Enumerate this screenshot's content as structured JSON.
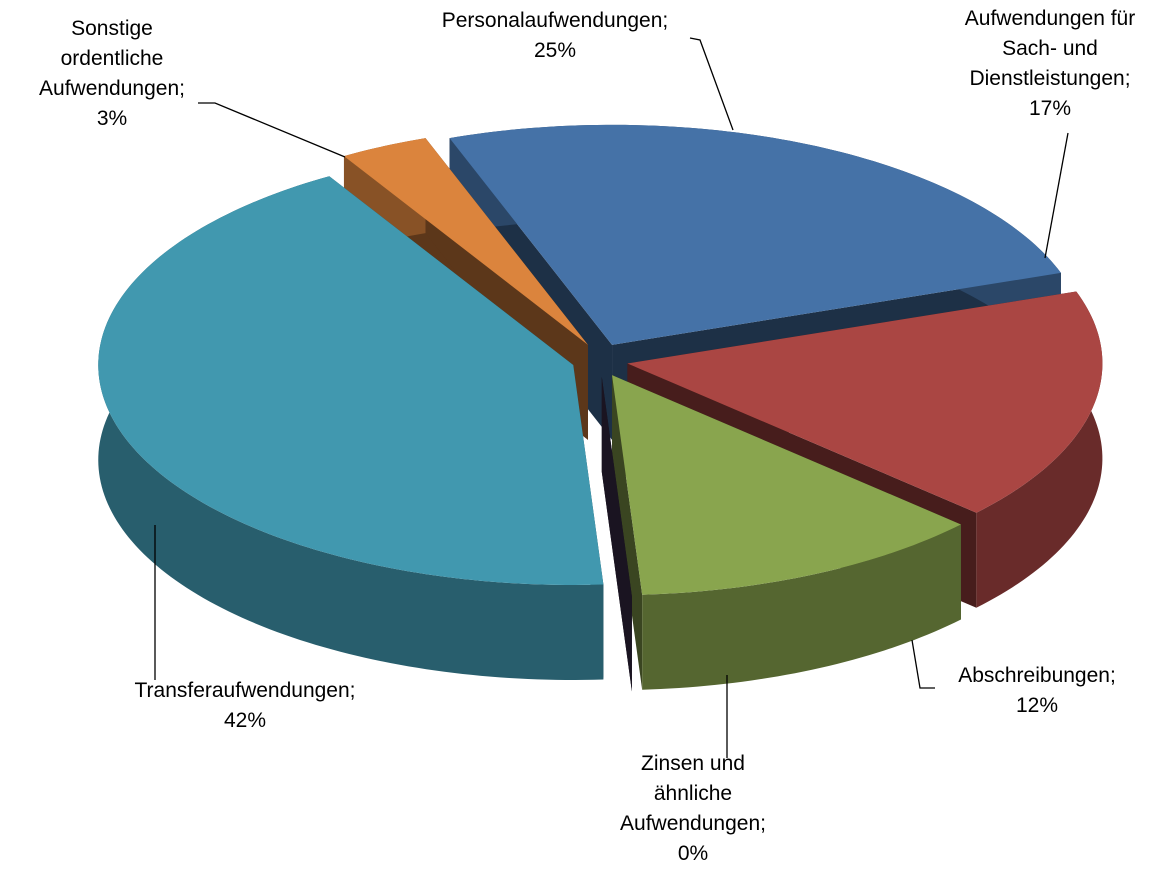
{
  "chart_data": {
    "type": "pie",
    "categories": [
      "Personalaufwendungen;",
      "Aufwendungen für Sach- und Dienstleistungen;",
      "Abschreibungen;",
      "Zinsen und ähnliche Aufwendungen;",
      "Transferaufwendungen;",
      "Sonstige ordentliche Aufwendungen;"
    ],
    "values": [
      25,
      17,
      12,
      0,
      42,
      3
    ],
    "value_labels": [
      "25%",
      "17%",
      "12%",
      "0%",
      "42%",
      "3%"
    ],
    "colors": [
      "#4572a7",
      "#aa4643",
      "#89a54e",
      "#3d2f4e",
      "#4198af",
      "#db843d"
    ],
    "3d": true,
    "exploded": true
  }
}
